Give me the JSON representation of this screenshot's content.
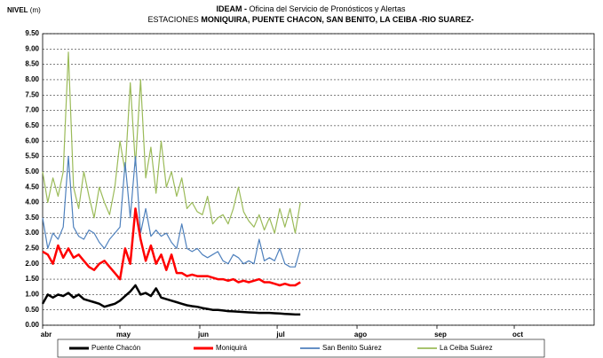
{
  "chart_data": {
    "type": "line",
    "title": [
      "IDEAM -",
      " Oficina del Servicio de Pronósticos y Alertas"
    ],
    "subtitle": [
      "ESTACIONES ",
      "MONIQUIRA, PUENTE CHACON, SAN BENITO, LA CEIBA  -RIO SUAREZ-"
    ],
    "ylabel": [
      "NIVEL",
      " (m)"
    ],
    "x": [
      0,
      2,
      4,
      6,
      8,
      10,
      12,
      14,
      16,
      18,
      20,
      22,
      24,
      26,
      28,
      30,
      32,
      34,
      36,
      38,
      40,
      42,
      44,
      46,
      48,
      50,
      52,
      54,
      56,
      58,
      60,
      62,
      64,
      66,
      68,
      70,
      72,
      74,
      76,
      78,
      80,
      82,
      84,
      86,
      88,
      90,
      92,
      94,
      96,
      98,
      100
    ],
    "xlim": [
      0,
      214
    ],
    "xticks": [
      {
        "value": 0,
        "label": "abr"
      },
      {
        "value": 30,
        "label": "may"
      },
      {
        "value": 61,
        "label": "jun"
      },
      {
        "value": 91,
        "label": "jul"
      },
      {
        "value": 122,
        "label": "ago"
      },
      {
        "value": 153,
        "label": "sep"
      },
      {
        "value": 183,
        "label": "oct"
      }
    ],
    "ylim": [
      0,
      9.5
    ],
    "yticks": [
      {
        "value": 0,
        "label": "0.00"
      },
      {
        "value": 0.5,
        "label": "0.50"
      },
      {
        "value": 1,
        "label": "1.00"
      },
      {
        "value": 1.5,
        "label": "1.50"
      },
      {
        "value": 2,
        "label": "2.00"
      },
      {
        "value": 2.5,
        "label": "2.50"
      },
      {
        "value": 3,
        "label": "3.00"
      },
      {
        "value": 3.5,
        "label": "3.50"
      },
      {
        "value": 4,
        "label": "4.00"
      },
      {
        "value": 4.5,
        "label": "4.50"
      },
      {
        "value": 5,
        "label": "5.00"
      },
      {
        "value": 5.5,
        "label": "5.50"
      },
      {
        "value": 6,
        "label": "6.00"
      },
      {
        "value": 6.5,
        "label": "6.50"
      },
      {
        "value": 7,
        "label": "7.00"
      },
      {
        "value": 7.5,
        "label": "7.50"
      },
      {
        "value": 8,
        "label": "8.00"
      },
      {
        "value": 8.5,
        "label": "8.50"
      },
      {
        "value": 9,
        "label": "9.00"
      },
      {
        "value": 9.5,
        "label": "9.50"
      }
    ],
    "grid": true,
    "legend": "bottom",
    "series": [
      {
        "name": "Puente Chacón",
        "color": "#000000",
        "width": 2.5,
        "values": [
          0.7,
          1.0,
          0.9,
          1.0,
          0.95,
          1.05,
          0.9,
          1.0,
          0.85,
          0.8,
          0.75,
          0.7,
          0.6,
          0.65,
          0.7,
          0.8,
          0.95,
          1.1,
          1.3,
          1.0,
          1.05,
          0.95,
          1.2,
          0.9,
          0.85,
          0.8,
          0.75,
          0.7,
          0.65,
          0.62,
          0.6,
          0.56,
          0.53,
          0.5,
          0.5,
          0.48,
          0.46,
          0.45,
          0.44,
          0.43,
          0.42,
          0.41,
          0.4,
          0.4,
          0.4,
          0.39,
          0.38,
          0.37,
          0.36,
          0.35,
          0.35
        ]
      },
      {
        "name": "Moniquirá",
        "color": "#ff0000",
        "width": 2.5,
        "values": [
          2.4,
          2.3,
          2.0,
          2.6,
          2.2,
          2.5,
          2.2,
          2.3,
          2.1,
          1.9,
          1.8,
          2.0,
          2.1,
          1.9,
          1.7,
          1.5,
          2.5,
          2.0,
          3.8,
          2.8,
          2.1,
          2.6,
          2.0,
          2.3,
          1.8,
          2.3,
          1.7,
          1.7,
          1.6,
          1.65,
          1.6,
          1.6,
          1.6,
          1.55,
          1.5,
          1.5,
          1.45,
          1.5,
          1.4,
          1.45,
          1.4,
          1.45,
          1.5,
          1.4,
          1.4,
          1.35,
          1.3,
          1.35,
          1.3,
          1.3,
          1.4
        ]
      },
      {
        "name": "San Benito  Suárez",
        "color": "#4f81bd",
        "width": 1.2,
        "values": [
          3.5,
          2.5,
          3.0,
          2.8,
          3.2,
          5.5,
          3.2,
          2.9,
          2.8,
          3.1,
          3.0,
          2.7,
          2.5,
          2.8,
          3.0,
          3.2,
          5.3,
          3.5,
          5.5,
          3.0,
          3.8,
          2.9,
          3.1,
          2.9,
          3.0,
          2.7,
          2.5,
          3.3,
          2.5,
          2.4,
          2.5,
          2.3,
          2.2,
          2.3,
          2.4,
          2.1,
          2.0,
          2.3,
          2.2,
          2.0,
          2.1,
          2.0,
          2.8,
          2.1,
          2.2,
          2.1,
          2.5,
          2.0,
          1.9,
          1.9,
          2.5
        ]
      },
      {
        "name": "La Ceiba  Suárez",
        "color": "#9bbb59",
        "width": 1.2,
        "values": [
          5.0,
          4.0,
          4.8,
          4.2,
          5.0,
          8.9,
          4.5,
          3.8,
          5.0,
          4.2,
          3.5,
          4.5,
          4.0,
          3.6,
          4.5,
          6.0,
          5.0,
          7.9,
          5.2,
          8.0,
          4.8,
          5.8,
          4.3,
          6.0,
          4.5,
          5.0,
          4.2,
          4.8,
          3.8,
          4.0,
          3.7,
          3.6,
          4.2,
          3.3,
          3.5,
          3.6,
          3.3,
          3.8,
          4.5,
          3.7,
          3.4,
          3.2,
          3.6,
          3.1,
          3.5,
          3.0,
          3.8,
          3.2,
          3.8,
          3.0,
          4.0
        ]
      }
    ]
  }
}
